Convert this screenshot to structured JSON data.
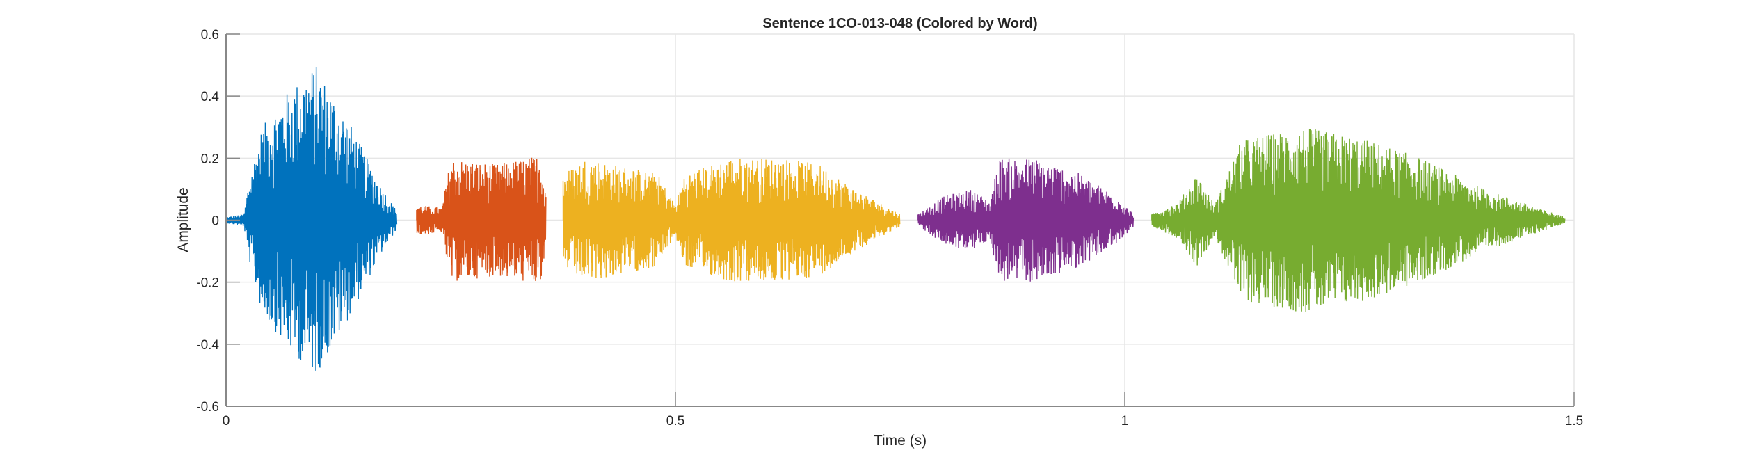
{
  "chart_data": {
    "type": "line",
    "title": "Sentence 1CO-013-048 (Colored by Word)",
    "xlabel": "Time (s)",
    "ylabel": "Amplitude",
    "xlim": [
      0,
      1.5
    ],
    "ylim": [
      -0.6,
      0.6
    ],
    "xticks": [
      0,
      0.5,
      1,
      1.5
    ],
    "xtick_labels": [
      "0",
      "0.5",
      "1",
      "1.5"
    ],
    "yticks": [
      -0.6,
      -0.4,
      -0.2,
      0,
      0.2,
      0.4,
      0.6
    ],
    "ytick_labels": [
      "-0.6",
      "-0.4",
      "-0.2",
      "0",
      "0.2",
      "0.4",
      "0.6"
    ],
    "grid": true,
    "series": [
      {
        "name": "word-1",
        "color": "#0072BD",
        "start": 0.0,
        "end": 0.19,
        "envelope": [
          [
            0,
            0.01
          ],
          [
            0.02,
            0.02
          ],
          [
            0.025,
            0.12
          ],
          [
            0.04,
            0.3
          ],
          [
            0.07,
            0.42
          ],
          [
            0.1,
            0.5
          ],
          [
            0.12,
            0.4
          ],
          [
            0.14,
            0.3
          ],
          [
            0.17,
            0.12
          ],
          [
            0.19,
            0.03
          ]
        ]
      },
      {
        "name": "word-2",
        "color": "#D95319",
        "start": 0.212,
        "end": 0.356,
        "envelope": [
          [
            0.212,
            0.05
          ],
          [
            0.24,
            0.04
          ],
          [
            0.25,
            0.2
          ],
          [
            0.3,
            0.18
          ],
          [
            0.35,
            0.21
          ],
          [
            0.356,
            0.1
          ]
        ]
      },
      {
        "name": "word-3",
        "color": "#EDB120",
        "start": 0.375,
        "end": 0.75,
        "envelope": [
          [
            0.375,
            0.15
          ],
          [
            0.4,
            0.2
          ],
          [
            0.48,
            0.15
          ],
          [
            0.49,
            0.1
          ],
          [
            0.5,
            0.05
          ],
          [
            0.51,
            0.15
          ],
          [
            0.56,
            0.2
          ],
          [
            0.62,
            0.2
          ],
          [
            0.66,
            0.18
          ],
          [
            0.7,
            0.1
          ],
          [
            0.75,
            0.02
          ]
        ]
      },
      {
        "name": "word-4",
        "color": "#7E2F8E",
        "start": 0.77,
        "end": 1.01,
        "envelope": [
          [
            0.77,
            0.02
          ],
          [
            0.8,
            0.08
          ],
          [
            0.83,
            0.1
          ],
          [
            0.85,
            0.06
          ],
          [
            0.86,
            0.2
          ],
          [
            0.9,
            0.2
          ],
          [
            0.95,
            0.15
          ],
          [
            0.99,
            0.08
          ],
          [
            1.01,
            0.02
          ]
        ]
      },
      {
        "name": "word-5",
        "color": "#77AC30",
        "start": 1.03,
        "end": 1.49,
        "envelope": [
          [
            1.03,
            0.02
          ],
          [
            1.06,
            0.06
          ],
          [
            1.08,
            0.15
          ],
          [
            1.1,
            0.05
          ],
          [
            1.13,
            0.26
          ],
          [
            1.2,
            0.3
          ],
          [
            1.27,
            0.26
          ],
          [
            1.33,
            0.2
          ],
          [
            1.4,
            0.1
          ],
          [
            1.45,
            0.05
          ],
          [
            1.49,
            0.01
          ]
        ]
      }
    ]
  }
}
